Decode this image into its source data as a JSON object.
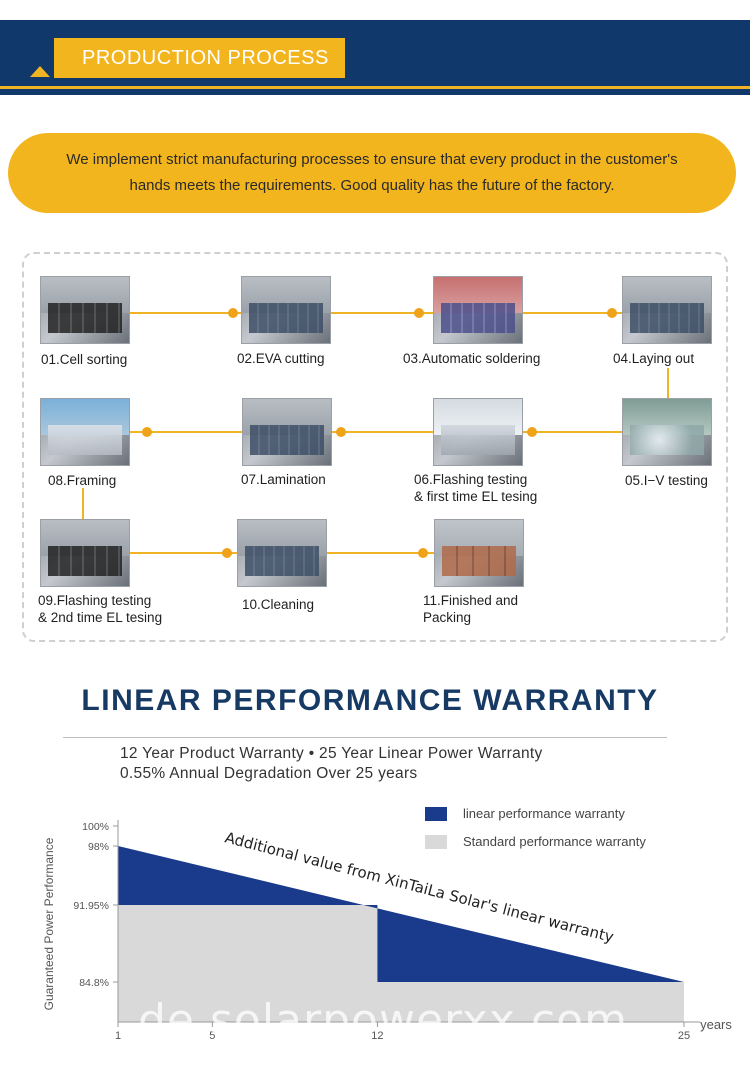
{
  "banner": {
    "label": "PRODUCTION PROCESS"
  },
  "intro": {
    "text": "We implement strict manufacturing processes to ensure that every product in the customer's hands meets the requirements. Good quality has the future of the factory."
  },
  "process": {
    "steps": [
      {
        "label_1": "01.Cell sorting",
        "label_2": ""
      },
      {
        "label_1": "02.EVA cutting",
        "label_2": ""
      },
      {
        "label_1": "03.Automatic soldering",
        "label_2": ""
      },
      {
        "label_1": "04.Laying out",
        "label_2": ""
      },
      {
        "label_1": "05.I−V testing",
        "label_2": ""
      },
      {
        "label_1": "06.Flashing testing",
        "label_2": "& first time EL tesing"
      },
      {
        "label_1": "07.Lamination",
        "label_2": ""
      },
      {
        "label_1": "08.Framing",
        "label_2": ""
      },
      {
        "label_1": "09.Flashing testing",
        "label_2": "& 2nd time EL tesing"
      },
      {
        "label_1": "10.Cleaning",
        "label_2": ""
      },
      {
        "label_1": "11.Finished and",
        "label_2": "Packing"
      }
    ]
  },
  "warranty": {
    "title": "LINEAR PERFORMANCE WARRANTY",
    "subtitle_1": "12 Year Product Warranty  •  25 Year Linear Power Warranty",
    "subtitle_2": "0.55% Annual Degradation Over 25 years",
    "legend": {
      "linear": "linear performance warranty",
      "standard": "Standard performance warranty"
    },
    "colors": {
      "linear": "#1a3a8c",
      "standard": "#d9d9d9"
    }
  },
  "chart_data": {
    "type": "area",
    "ylabel": "Guaranteed Power Performance",
    "xlabel": "years",
    "x_ticks": [
      "1",
      "5",
      "12",
      "25"
    ],
    "y_ticks": [
      "100%",
      "98%",
      "91.95%",
      "84.8%"
    ],
    "annotation": "Additional value from XinTaiLa Solar's linear warranty",
    "series": [
      {
        "name": "linear performance warranty",
        "x": [
          1,
          25
        ],
        "y": [
          98,
          84.8
        ]
      },
      {
        "name": "Standard performance warranty",
        "x": [
          1,
          12,
          12,
          25
        ],
        "y": [
          91.95,
          91.95,
          84.8,
          84.8
        ]
      }
    ]
  },
  "watermark": "de.solarpowerxx.com"
}
